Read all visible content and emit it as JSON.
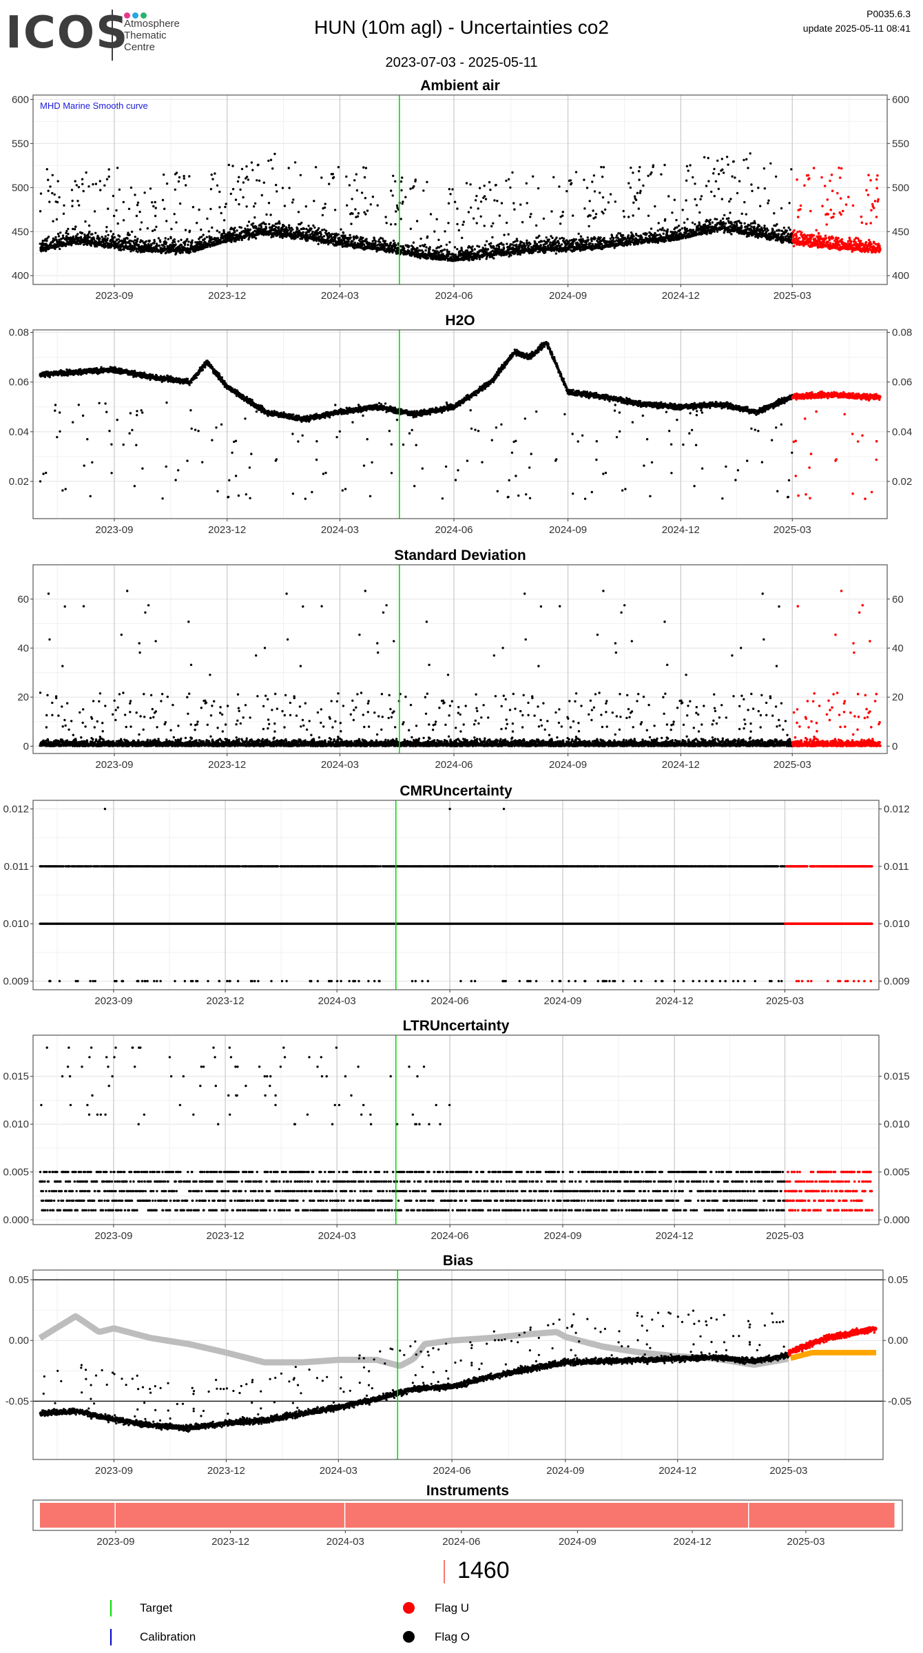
{
  "header": {
    "logo_text": "ICOS",
    "logo_subtitle_lines": [
      "Atmosphere",
      "Thematic",
      "Centre"
    ],
    "logo_dot_colors": [
      "#e8398a",
      "#2aa6de",
      "#28b36b"
    ],
    "title": "HUN  (10m agl) - Uncertainties co2",
    "period": "2023-07-03 - 2025-05-11",
    "version": "P0035.6.3",
    "update": "update  2025-05-11 08:41"
  },
  "colors": {
    "normal": "#000000",
    "flag_u": "#ff0000",
    "target": "#00dd00",
    "calibration": "#0000cc",
    "smooth": "#bdbdbd",
    "bias_u": "#ffa500",
    "instrument": "#f8766d",
    "annotation": "#1a1adc"
  },
  "x_axis": {
    "start": "2023-07-03",
    "end": "2025-05-11",
    "tick_labels": [
      "2023-09",
      "2023-12",
      "2024-03",
      "2024-06",
      "2024-09",
      "2024-12",
      "2025-03"
    ],
    "tick_dates": [
      "2023-09-01",
      "2023-12-01",
      "2024-03-01",
      "2024-06-01",
      "2024-09-01",
      "2024-12-01",
      "2025-03-01"
    ]
  },
  "target_date": "2024-04-18",
  "flag_u_start": "2025-03-01",
  "chart_data": [
    {
      "type": "scatter",
      "title": "Ambient air",
      "ylim": [
        390,
        605
      ],
      "yticks": [
        400,
        450,
        500,
        550,
        600
      ],
      "ytick_labels": [
        "400",
        "450",
        "500",
        "550",
        "600"
      ],
      "annotation": "MHD Marine Smooth curve",
      "series": [
        {
          "values_description_points": [
            [
              "2023-07",
              430
            ],
            [
              "2023-08",
              440
            ],
            [
              "2023-09",
              435
            ],
            [
              "2023-10",
              430
            ],
            [
              "2023-11",
              430
            ],
            [
              "2023-12",
              442
            ],
            [
              "2024-01",
              450
            ],
            [
              "2024-02",
              445
            ],
            [
              "2024-03",
              438
            ],
            [
              "2024-04",
              432
            ],
            [
              "2024-05",
              425
            ],
            [
              "2024-06",
              420
            ],
            [
              "2024-07",
              425
            ],
            [
              "2024-08",
              430
            ],
            [
              "2024-09",
              432
            ],
            [
              "2024-10",
              435
            ],
            [
              "2024-11",
              440
            ],
            [
              "2024-12",
              445
            ],
            [
              "2025-01",
              455
            ],
            [
              "2025-02",
              448
            ],
            [
              "2025-03",
              440
            ],
            [
              "2025-04",
              435
            ],
            [
              "2025-05",
              430
            ]
          ]
        }
      ]
    },
    {
      "type": "scatter",
      "title": "H2O",
      "ylim": [
        0.005,
        0.081
      ],
      "yticks": [
        0.02,
        0.04,
        0.06,
        0.08
      ],
      "ytick_labels": [
        "0.02",
        "0.04",
        "0.06",
        "0.08"
      ],
      "series": [
        {
          "values_description_points": [
            [
              "2023-07",
              0.063
            ],
            [
              "2023-08",
              0.064
            ],
            [
              "2023-09",
              0.065
            ],
            [
              "2023-10",
              0.062
            ],
            [
              "2023-11",
              0.06
            ],
            [
              "2023-11-15",
              0.068
            ],
            [
              "2023-12",
              0.058
            ],
            [
              "2024-01",
              0.048
            ],
            [
              "2024-02",
              0.045
            ],
            [
              "2024-03",
              0.048
            ],
            [
              "2024-04",
              0.05
            ],
            [
              "2024-05",
              0.047
            ],
            [
              "2024-06",
              0.05
            ],
            [
              "2024-07",
              0.06
            ],
            [
              "2024-07-20",
              0.072
            ],
            [
              "2024-08",
              0.07
            ],
            [
              "2024-08-15",
              0.076
            ],
            [
              "2024-09",
              0.056
            ],
            [
              "2024-10",
              0.054
            ],
            [
              "2024-11",
              0.051
            ],
            [
              "2024-12",
              0.05
            ],
            [
              "2025-01",
              0.051
            ],
            [
              "2025-02",
              0.048
            ],
            [
              "2025-03",
              0.054
            ],
            [
              "2025-04",
              0.055
            ],
            [
              "2025-05",
              0.054
            ]
          ]
        }
      ]
    },
    {
      "type": "scatter",
      "title": "Standard Deviation",
      "ylim": [
        -3,
        74
      ],
      "yticks": [
        0,
        20,
        40,
        60
      ],
      "ytick_labels": [
        "0",
        "20",
        "40",
        "60"
      ],
      "series": [
        {
          "values_description_points": [
            [
              "2023-07",
              3
            ],
            [
              "2024-04",
              3
            ],
            [
              "2024-08",
              6
            ],
            [
              "2025-05",
              4
            ]
          ]
        }
      ]
    },
    {
      "type": "scatter",
      "title": "CMRUncertainty",
      "ylim": [
        0.00885,
        0.01215
      ],
      "yticks": [
        0.009,
        0.01,
        0.011,
        0.012
      ],
      "ytick_labels": [
        "0.009",
        "0.010",
        "0.011",
        "0.012"
      ],
      "levels": [
        0.009,
        0.01,
        0.011,
        0.012
      ]
    },
    {
      "type": "scatter",
      "title": "LTRUncertainty",
      "ylim": [
        -0.0005,
        0.0193
      ],
      "yticks": [
        0.0,
        0.005,
        0.01,
        0.015
      ],
      "ytick_labels": [
        "0.000",
        "0.005",
        "0.010",
        "0.015"
      ],
      "levels": [
        0.001,
        0.002,
        0.003,
        0.004,
        0.005
      ]
    },
    {
      "type": "line",
      "title": "Bias",
      "ylim": [
        -0.098,
        0.058
      ],
      "yticks": [
        -0.05,
        0.0,
        0.05
      ],
      "ytick_labels": [
        "-0.05",
        "0.00",
        "0.05"
      ],
      "reference_lines": [
        -0.05,
        0.05
      ],
      "series": [
        {
          "values_description_points": [
            [
              "2023-07-03",
              -0.06
            ],
            [
              "2023-08",
              -0.058
            ],
            [
              "2023-09",
              -0.065
            ],
            [
              "2023-10",
              -0.07
            ],
            [
              "2023-11",
              -0.072
            ],
            [
              "2023-12",
              -0.068
            ],
            [
              "2024-01",
              -0.066
            ],
            [
              "2024-02",
              -0.06
            ],
            [
              "2024-03",
              -0.055
            ],
            [
              "2024-04",
              -0.048
            ],
            [
              "2024-05",
              -0.04
            ],
            [
              "2024-06",
              -0.038
            ],
            [
              "2024-07",
              -0.03
            ],
            [
              "2024-08",
              -0.024
            ],
            [
              "2024-09",
              -0.018
            ],
            [
              "2024-10",
              -0.017
            ],
            [
              "2024-11",
              -0.016
            ],
            [
              "2024-12",
              -0.015
            ],
            [
              "2025-01",
              -0.014
            ],
            [
              "2025-02",
              -0.017
            ],
            [
              "2025-03",
              -0.012
            ],
            [
              "2025-04",
              0.0
            ],
            [
              "2025-05-11",
              0.008
            ]
          ]
        },
        {
          "name": "smooth",
          "values_description_points": [
            [
              "2023-07-03",
              0.002
            ],
            [
              "2023-08",
              0.02
            ],
            [
              "2023-08-20",
              0.007
            ],
            [
              "2023-09",
              0.01
            ],
            [
              "2023-10",
              0.002
            ],
            [
              "2023-11",
              -0.003
            ],
            [
              "2023-12",
              -0.01
            ],
            [
              "2024-01",
              -0.018
            ],
            [
              "2024-02",
              -0.018
            ],
            [
              "2024-03",
              -0.016
            ],
            [
              "2024-04",
              -0.016
            ],
            [
              "2024-04-20",
              -0.021
            ],
            [
              "2024-05",
              -0.015
            ],
            [
              "2024-05-10",
              -0.003
            ],
            [
              "2024-06",
              0.0
            ],
            [
              "2024-07",
              0.002
            ],
            [
              "2024-08",
              0.005
            ],
            [
              "2024-08-25",
              0.007
            ],
            [
              "2024-09",
              0.003
            ],
            [
              "2024-10",
              -0.005
            ],
            [
              "2024-11",
              -0.01
            ],
            [
              "2024-12",
              -0.013
            ],
            [
              "2025-01",
              -0.015
            ],
            [
              "2025-02",
              -0.02
            ],
            [
              "2025-03",
              -0.015
            ],
            [
              "2025-03-20",
              -0.01
            ],
            [
              "2025-05-11",
              -0.01
            ]
          ]
        }
      ]
    },
    {
      "type": "bar",
      "title": "Instruments",
      "segments": [
        [
          "2023-07-03",
          "2023-09-01"
        ],
        [
          "2023-09-01",
          "2024-03-01"
        ],
        [
          "2024-03-01",
          "2025-01-15"
        ],
        [
          "2025-01-15",
          "2025-05-11"
        ]
      ]
    }
  ],
  "instrument_number": "1460",
  "legend": [
    {
      "label": "Target",
      "marker": "vline",
      "color": "#00dd00"
    },
    {
      "label": "Calibration",
      "marker": "vline",
      "color": "#0000cc"
    },
    {
      "label": "Flag U",
      "marker": "dot",
      "color": "#ff0000"
    },
    {
      "label": "Flag O",
      "marker": "dot",
      "color": "#000000"
    }
  ]
}
